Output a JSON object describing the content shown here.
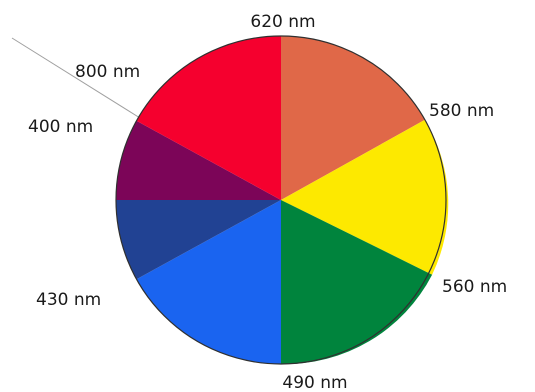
{
  "wheel": {
    "center_color": "#ffffff",
    "outline_color": "#303030",
    "pointer_color": "#a0a0a0",
    "segments": [
      {
        "name": "orange",
        "color": "#e06848"
      },
      {
        "name": "yellow",
        "color": "#fde900"
      },
      {
        "name": "green",
        "color": "#00843d"
      },
      {
        "name": "blue",
        "color": "#1a64f0"
      },
      {
        "name": "indigo",
        "color": "#214293"
      },
      {
        "name": "violet",
        "color": "#7c0558"
      },
      {
        "name": "red",
        "color": "#f5002e"
      }
    ],
    "labels": {
      "top": "620 nm",
      "upper_right": "580 nm",
      "lower_right": "560 nm",
      "bottom": "490 nm",
      "lower_left": "430 nm",
      "left": "400 nm",
      "upper_left": "800 nm"
    }
  }
}
